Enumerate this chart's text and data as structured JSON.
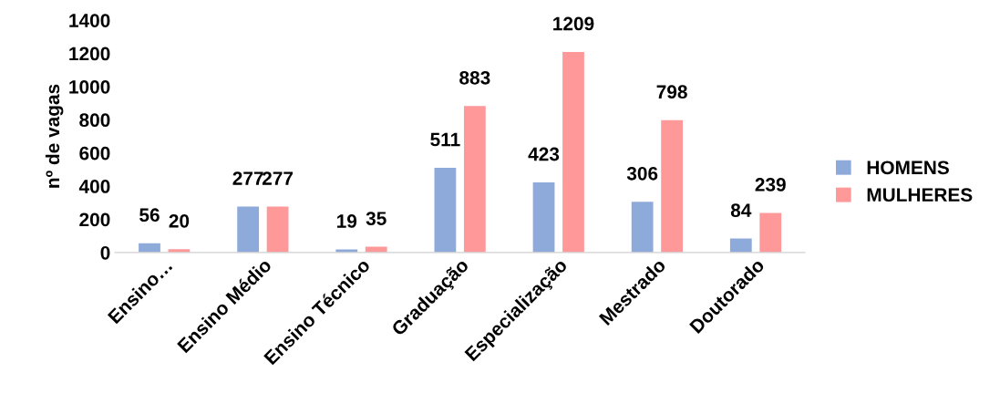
{
  "chart_data": {
    "type": "bar",
    "ylabel": "nº de vagas",
    "categories": [
      "Ensino…",
      "Ensino Médio",
      "Ensino Técnico",
      "Graduação",
      "Especialização",
      "Mestrado",
      "Doutorado"
    ],
    "series": [
      {
        "name": "HOMENS",
        "color": "#8eaadb",
        "values": [
          56,
          277,
          19,
          511,
          423,
          306,
          84
        ]
      },
      {
        "name": "MULHERES",
        "color": "#ff9999",
        "values": [
          20,
          277,
          35,
          883,
          1209,
          798,
          239
        ]
      }
    ],
    "ylim": [
      0,
      1400
    ],
    "yticks": [
      0,
      200,
      400,
      600,
      800,
      1000,
      1200,
      1400
    ],
    "data_labels": true,
    "grid": false,
    "legend": "right"
  }
}
